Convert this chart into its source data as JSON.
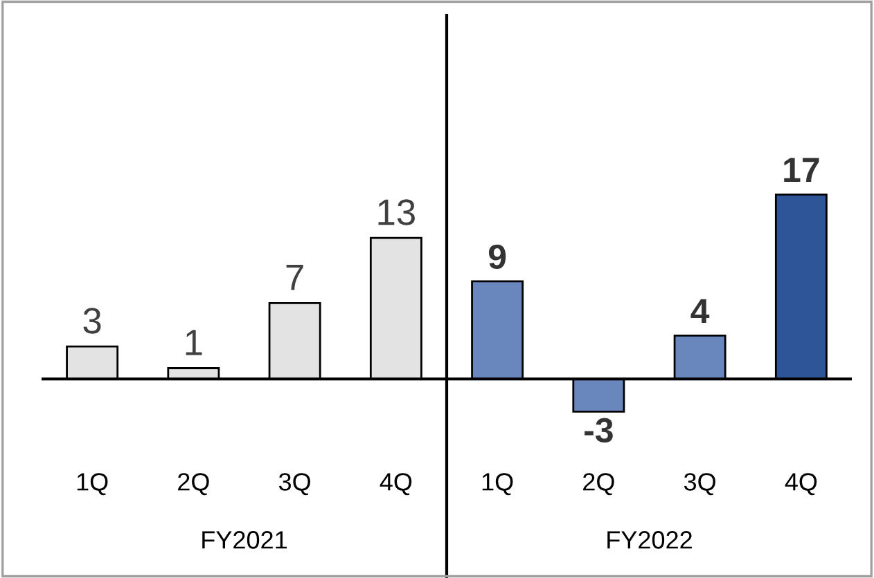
{
  "chart_data": {
    "type": "bar",
    "categories": [
      "1Q",
      "2Q",
      "3Q",
      "4Q",
      "1Q",
      "2Q",
      "3Q",
      "4Q"
    ],
    "values": [
      3,
      1,
      7,
      13,
      9,
      -3,
      4,
      17
    ],
    "colors": [
      "#e3e3e3",
      "#e3e3e3",
      "#e3e3e3",
      "#e3e3e3",
      "#6a87bd",
      "#6a87bd",
      "#6a87bd",
      "#2e5597"
    ],
    "data_labels": true,
    "annotations": [
      "FY2021",
      "FY2022"
    ],
    "grid": false,
    "legend": false
  }
}
